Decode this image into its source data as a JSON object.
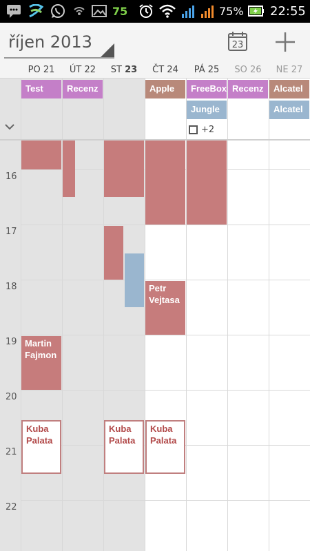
{
  "status_bar": {
    "notification_count": "75",
    "battery_percent": "75%",
    "time": "22:55",
    "icons": [
      "messenger-icon",
      "swype-icon",
      "whatsapp-icon",
      "wifi-broadcast-icon",
      "gallery-icon",
      "alarm-icon",
      "wifi-icon",
      "signal-icon",
      "signal-icon",
      "battery-charging-icon"
    ]
  },
  "header": {
    "month_title": "říjen 2013",
    "today_day": "23",
    "add_icon": "plus-icon"
  },
  "days": [
    {
      "prefix": "PO",
      "num": "21",
      "weekend": false,
      "today": false
    },
    {
      "prefix": "ÚT",
      "num": "22",
      "weekend": false,
      "today": false
    },
    {
      "prefix": "ST",
      "num": "23",
      "weekend": false,
      "today": true
    },
    {
      "prefix": "ČT",
      "num": "24",
      "weekend": false,
      "today": false
    },
    {
      "prefix": "PÁ",
      "num": "25",
      "weekend": false,
      "today": false
    },
    {
      "prefix": "SO",
      "num": "26",
      "weekend": true,
      "today": false
    },
    {
      "prefix": "NE",
      "num": "27",
      "weekend": true,
      "today": false
    }
  ],
  "all_day": {
    "events": [
      {
        "label": "Test",
        "day": 0
      },
      {
        "label": "Recenz",
        "day": 1
      },
      {
        "label": "Apple",
        "day": 3
      },
      {
        "label": "FreeBox",
        "day": 4
      },
      {
        "label": "Recenz",
        "day": 5
      },
      {
        "label": "Alcatel",
        "day": 6
      },
      {
        "label": "Jungle",
        "day": 4
      },
      {
        "label": "Alcatel",
        "day": 6
      }
    ],
    "more_label": "+2"
  },
  "hours": [
    "16",
    "17",
    "18",
    "19",
    "20",
    "21",
    "22"
  ],
  "events": [
    {
      "label": "",
      "day": 0
    },
    {
      "label": "",
      "day": 1
    },
    {
      "label": "",
      "day": 2
    },
    {
      "label": "",
      "day": 3
    },
    {
      "label": "",
      "day": 4
    },
    {
      "label": "",
      "day": 2
    },
    {
      "label": "",
      "day": 2
    },
    {
      "label": "Petr Vejtasa",
      "day": 3
    },
    {
      "label": "Martin Fajmon",
      "day": 0
    },
    {
      "label": "",
      "day": 1
    },
    {
      "label": "Kuba Palata",
      "day": 0
    },
    {
      "label": "Kuba Palata",
      "day": 2
    },
    {
      "label": "Kuba Palata",
      "day": 3
    }
  ],
  "colors": {
    "event_red": "#c67c7c",
    "event_blue": "#9ab6cf",
    "event_purple": "#c47fc8",
    "event_brown": "#b8897a",
    "event_green": "#62a77c",
    "past_bg": "#e3e3e3"
  }
}
